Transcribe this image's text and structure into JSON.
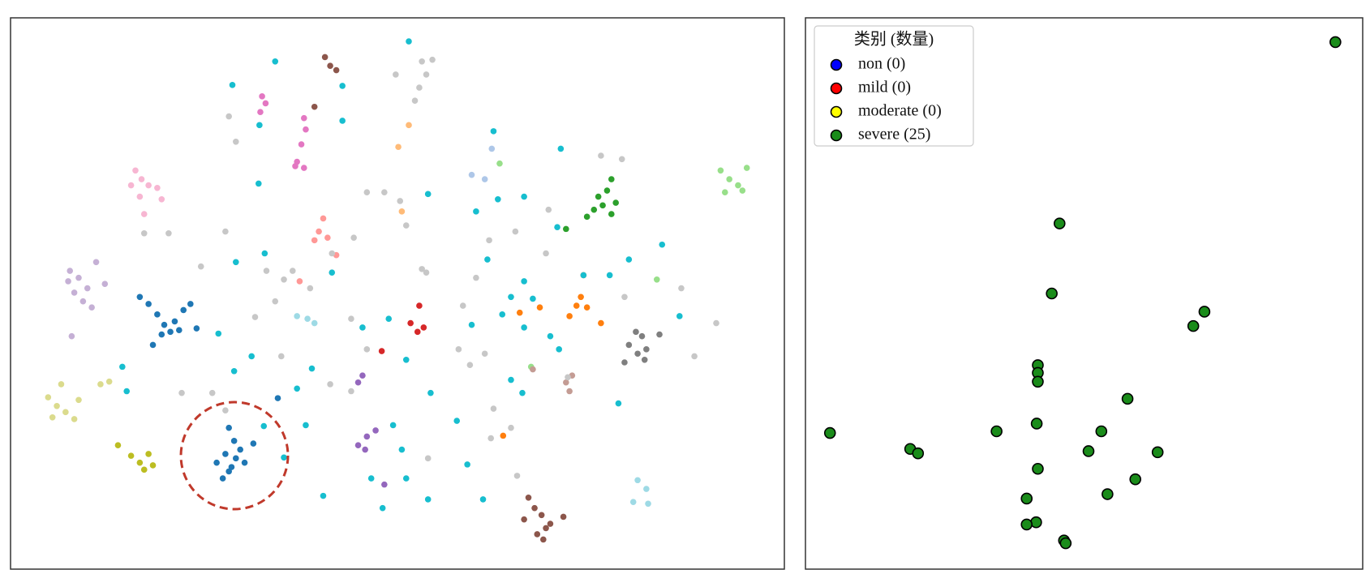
{
  "chart_data": [
    {
      "type": "scatter",
      "xlim": [
        0,
        886
      ],
      "ylim": [
        0,
        632
      ],
      "marker_edge": false,
      "series": [
        {
          "color": "#1f77b4",
          "x": [
            148,
            158,
            168,
            176,
            183,
            163,
            188,
            198,
            206,
            193,
            213,
            173,
            250,
            256,
            246,
            258,
            268,
            250,
            243,
            263,
            278,
            236,
            253,
            306
          ],
          "y": [
            312,
            304,
            292,
            280,
            272,
            257,
            284,
            297,
            304,
            274,
            276,
            269,
            162,
            147,
            132,
            127,
            122,
            112,
            104,
            137,
            144,
            122,
            117,
            196
          ]
        },
        {
          "color": "#8c564b",
          "x": [
            360,
            366,
            373,
            348,
            593,
            600,
            608,
            613,
            603,
            618,
            633,
            588,
            610
          ],
          "y": [
            587,
            577,
            572,
            530,
            82,
            70,
            62,
            47,
            40,
            52,
            60,
            57,
            34
          ]
        },
        {
          "color": "#e377c2",
          "x": [
            288,
            292,
            286,
            336,
            338,
            333,
            328,
            336,
            326
          ],
          "y": [
            542,
            534,
            524,
            517,
            504,
            487,
            467,
            460,
            462
          ]
        },
        {
          "color": "#f7b6d2",
          "x": [
            143,
            150,
            158,
            168,
            148,
            153,
            138,
            173
          ],
          "y": [
            457,
            447,
            440,
            437,
            427,
            407,
            440,
            424
          ]
        },
        {
          "color": "#c5b0d5",
          "x": [
            68,
            78,
            88,
            83,
            93,
            73,
            66,
            98,
            108,
            70
          ],
          "y": [
            342,
            334,
            322,
            307,
            300,
            317,
            330,
            352,
            327,
            267
          ]
        },
        {
          "color": "#dbdb8d",
          "x": [
            43,
            53,
            63,
            48,
            73,
            58,
            78,
            103,
            113
          ],
          "y": [
            197,
            187,
            180,
            174,
            172,
            212,
            194,
            212,
            215
          ]
        },
        {
          "color": "#bcbd22",
          "x": [
            123,
            138,
            148,
            153,
            163,
            158
          ],
          "y": [
            142,
            130,
            122,
            114,
            119,
            132
          ]
        },
        {
          "color": "#ff9896",
          "x": [
            353,
            358,
            363,
            348,
            373,
            331
          ],
          "y": [
            387,
            402,
            380,
            377,
            360,
            330
          ]
        },
        {
          "color": "#d62728",
          "x": [
            468,
            458,
            466,
            473,
            425
          ],
          "y": [
            302,
            282,
            272,
            277,
            250
          ]
        },
        {
          "color": "#9467bd",
          "x": [
            403,
            398,
            398,
            408,
            418,
            428,
            406
          ],
          "y": [
            222,
            214,
            142,
            152,
            159,
            97,
            137
          ]
        },
        {
          "color": "#2ca02c",
          "x": [
            688,
            683,
            673,
            693,
            668,
            660,
            688,
            678,
            636
          ],
          "y": [
            447,
            434,
            427,
            420,
            412,
            404,
            407,
            417,
            390
          ]
        },
        {
          "color": "#98df8a",
          "x": [
            813,
            823,
            833,
            843,
            838,
            818,
            560,
            740,
            596
          ],
          "y": [
            457,
            447,
            440,
            460,
            434,
            432,
            465,
            332,
            232
          ]
        },
        {
          "color": "#ff7f0e",
          "x": [
            653,
            648,
            656,
            660,
            676,
            583,
            606,
            640,
            564
          ],
          "y": [
            312,
            302,
            337,
            300,
            282,
            294,
            300,
            290,
            153
          ]
        },
        {
          "color": "#ffbb78",
          "x": [
            444,
            456,
            448
          ],
          "y": [
            484,
            509,
            410
          ]
        },
        {
          "color": "#7f7f7f",
          "x": [
            708,
            718,
            728,
            723,
            743,
            703,
            726,
            716
          ],
          "y": [
            257,
            247,
            252,
            267,
            269,
            237,
            240,
            272
          ]
        },
        {
          "color": "#c49c94",
          "x": [
            643,
            636,
            640,
            598
          ],
          "y": [
            222,
            214,
            204,
            229
          ]
        },
        {
          "color": "#aec7e8",
          "x": [
            528,
            543,
            551
          ],
          "y": [
            452,
            447,
            482
          ]
        },
        {
          "color": "#9edae5",
          "x": [
            328,
            340,
            348,
            713,
            728,
            718,
            730
          ],
          "y": [
            290,
            287,
            282,
            77,
            92,
            102,
            75
          ]
        },
        {
          "color": "#17becf",
          "x": [
            456,
            303,
            380,
            254,
            285,
            380,
            284,
            553,
            630,
            478,
            533,
            558,
            588,
            626,
            746,
            708,
            656,
            686,
            546,
            588,
            573,
            598,
            563,
            588,
            618,
            528,
            573,
            586,
            628,
            696,
            766,
            258,
            291,
            368,
            238,
            276,
            256,
            328,
            345,
            403,
            433,
            453,
            481,
            133,
            128,
            338,
            438,
            448,
            413,
            453,
            426,
            478,
            511,
            523,
            541,
            358,
            290,
            313
          ],
          "y": [
            605,
            582,
            554,
            555,
            509,
            514,
            442,
            502,
            482,
            430,
            410,
            424,
            427,
            392,
            372,
            355,
            337,
            337,
            355,
            330,
            312,
            310,
            292,
            277,
            267,
            280,
            217,
            202,
            252,
            190,
            290,
            352,
            362,
            340,
            270,
            244,
            227,
            207,
            230,
            277,
            287,
            240,
            202,
            204,
            232,
            165,
            165,
            137,
            104,
            104,
            70,
            80,
            170,
            120,
            80,
            84,
            164,
            128
          ]
        },
        {
          "color": "#c7c7c7",
          "x": [
            471,
            483,
            476,
            468,
            463,
            441,
            250,
            258,
            408,
            428,
            446,
            453,
            471,
            476,
            246,
            293,
            313,
            323,
            343,
            368,
            393,
            280,
            310,
            366,
            390,
            408,
            390,
            518,
            533,
            513,
            526,
            543,
            553,
            573,
            550,
            478,
            580,
            616,
            548,
            613,
            578,
            676,
            700,
            768,
            808,
            783,
            703,
            196,
            231,
            246,
            218,
            303,
            181,
            153,
            638
          ],
          "y": [
            582,
            584,
            567,
            552,
            537,
            567,
            519,
            490,
            432,
            432,
            422,
            394,
            344,
            340,
            387,
            342,
            332,
            342,
            322,
            362,
            380,
            289,
            244,
            212,
            204,
            252,
            287,
            302,
            334,
            252,
            234,
            247,
            184,
            162,
            150,
            127,
            107,
            412,
            377,
            362,
            387,
            474,
            470,
            322,
            282,
            244,
            312,
            202,
            202,
            182,
            347,
            307,
            385,
            385,
            220
          ]
        }
      ]
    },
    {
      "type": "scatter",
      "xlim": [
        0,
        100
      ],
      "ylim": [
        0,
        100
      ],
      "marker_edge": true,
      "legend": "upper left",
      "legend_title": "类别 (数量)",
      "series": [
        {
          "name": "non (0)",
          "color": "#0000ff",
          "x": [],
          "y": []
        },
        {
          "name": "mild (0)",
          "color": "#ff0000",
          "x": [],
          "y": []
        },
        {
          "name": "moderate (0)",
          "color": "#ffff00",
          "x": [],
          "y": []
        },
        {
          "name": "severe (25)",
          "color": "#1a8c1a",
          "x": [
            95.1,
            45.6,
            44.2,
            71.6,
            69.6,
            41.7,
            41.7,
            41.7,
            57.8,
            4.4,
            34.3,
            41.5,
            53.1,
            18.8,
            20.2,
            50.8,
            63.2,
            41.7,
            59.2,
            54.2,
            39.7,
            41.4,
            39.7,
            46.4,
            46.7
          ],
          "y": [
            95.6,
            62.7,
            50.0,
            46.7,
            44.1,
            37.0,
            35.6,
            34.0,
            30.9,
            24.7,
            25.0,
            26.4,
            25.0,
            21.8,
            21.0,
            21.4,
            21.2,
            18.2,
            16.3,
            13.6,
            12.8,
            8.5,
            8.1,
            5.2,
            4.7
          ]
        }
      ]
    }
  ]
}
